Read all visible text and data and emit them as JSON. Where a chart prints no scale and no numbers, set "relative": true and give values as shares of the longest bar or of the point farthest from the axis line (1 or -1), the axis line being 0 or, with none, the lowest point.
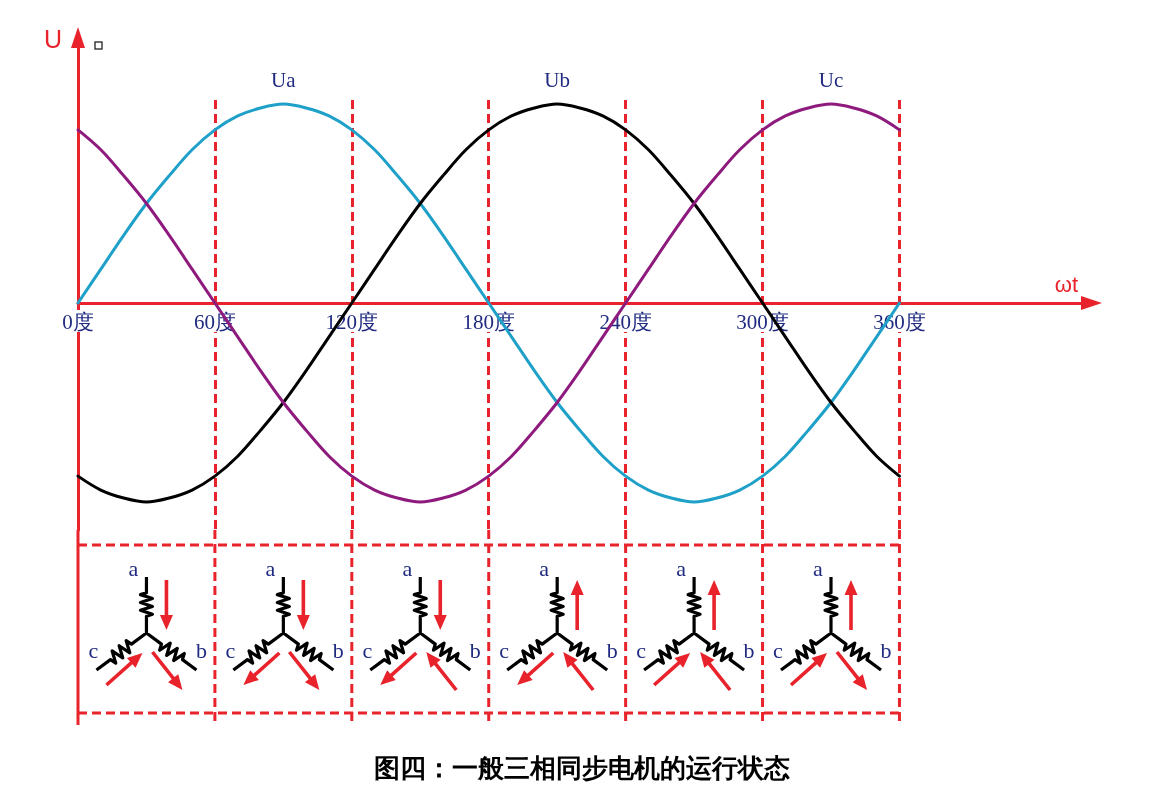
{
  "chart_data": {
    "type": "line",
    "title": "图四：一般三相同步电机的运行状态",
    "xlabel": "ωt",
    "ylabel": "U",
    "relative": true,
    "x": [
      0,
      10,
      20,
      30,
      40,
      50,
      60,
      70,
      80,
      90,
      100,
      110,
      120,
      130,
      140,
      150,
      160,
      170,
      180,
      190,
      200,
      210,
      220,
      230,
      240,
      250,
      260,
      270,
      280,
      290,
      300,
      310,
      320,
      330,
      340,
      350,
      360
    ],
    "series": [
      {
        "name": "Ua",
        "color": "#1fa0c8",
        "values": [
          0,
          0.17,
          0.34,
          0.5,
          0.64,
          0.77,
          0.87,
          0.94,
          0.98,
          1,
          0.98,
          0.94,
          0.87,
          0.77,
          0.64,
          0.5,
          0.34,
          0.17,
          0,
          -0.17,
          -0.34,
          -0.5,
          -0.64,
          -0.77,
          -0.87,
          -0.94,
          -0.98,
          -1,
          -0.98,
          -0.94,
          -0.87,
          -0.77,
          -0.64,
          -0.5,
          -0.34,
          -0.17,
          0
        ]
      },
      {
        "name": "Ub",
        "color": "#000000",
        "values": [
          -0.87,
          -0.94,
          -0.98,
          -1,
          -0.98,
          -0.94,
          -0.87,
          -0.77,
          -0.64,
          -0.5,
          -0.34,
          -0.17,
          0,
          0.17,
          0.34,
          0.5,
          0.64,
          0.77,
          0.87,
          0.94,
          0.98,
          1,
          0.98,
          0.94,
          0.87,
          0.77,
          0.64,
          0.5,
          0.34,
          0.17,
          0,
          -0.17,
          -0.34,
          -0.5,
          -0.64,
          -0.77,
          -0.87
        ]
      },
      {
        "name": "Uc",
        "color": "#8e1a7e",
        "values": [
          0.87,
          0.77,
          0.64,
          0.5,
          0.34,
          0.17,
          0,
          -0.17,
          -0.34,
          -0.5,
          -0.64,
          -0.77,
          -0.87,
          -0.94,
          -0.98,
          -1,
          -0.98,
          -0.94,
          -0.87,
          -0.77,
          -0.64,
          -0.5,
          -0.34,
          -0.17,
          0,
          0.17,
          0.34,
          0.5,
          0.64,
          0.77,
          0.87,
          0.94,
          0.98,
          1,
          0.98,
          0.94,
          0.87
        ]
      }
    ],
    "xlim": [
      0,
      440
    ],
    "xticks": [
      {
        "value": 0,
        "label": "0度"
      },
      {
        "value": 60,
        "label": "60度"
      },
      {
        "value": 120,
        "label": "120度"
      },
      {
        "value": 180,
        "label": "180度"
      },
      {
        "value": 240,
        "label": "240度"
      },
      {
        "value": 300,
        "label": "300度"
      },
      {
        "value": 360,
        "label": "360度"
      }
    ],
    "ref_lines": [
      {
        "axis": "x",
        "value": 60,
        "color": "#e8232b",
        "line_style": "dashed"
      },
      {
        "axis": "x",
        "value": 120,
        "color": "#e8232b",
        "line_style": "dashed"
      },
      {
        "axis": "x",
        "value": 180,
        "color": "#e8232b",
        "line_style": "dashed"
      },
      {
        "axis": "x",
        "value": 240,
        "color": "#e8232b",
        "line_style": "dashed"
      },
      {
        "axis": "x",
        "value": 300,
        "color": "#e8232b",
        "line_style": "dashed"
      },
      {
        "axis": "x",
        "value": 360,
        "color": "#e8232b",
        "line_style": "dashed"
      }
    ],
    "annotations": [
      "a",
      "b",
      "c"
    ],
    "legend": false,
    "grid": false,
    "marker": "none",
    "line_style": "solid",
    "tick_labels": "x"
  }
}
